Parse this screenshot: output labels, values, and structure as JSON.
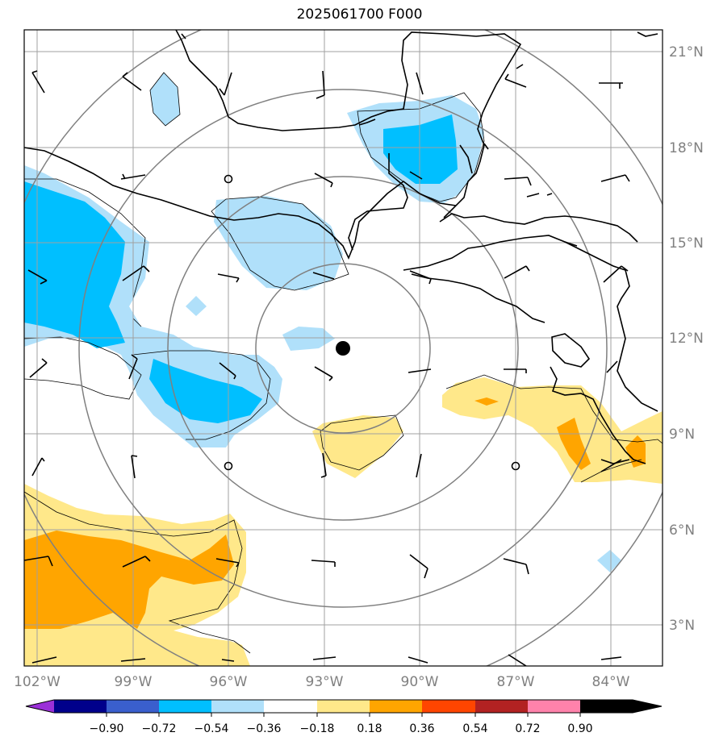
{
  "title": "2025061700 F000",
  "lat_labels": [
    "21°N",
    "18°N",
    "15°N",
    "12°N",
    "9°N",
    "6°N",
    "3°N"
  ],
  "lon_labels": [
    "102°W",
    "99°W",
    "96°W",
    "93°W",
    "90°W",
    "87°W",
    "84°W"
  ],
  "colorbar": {
    "ticks": [
      "−0.90",
      "−0.72",
      "−0.54",
      "−0.36",
      "−0.18",
      "0.18",
      "0.36",
      "0.54",
      "0.72",
      "0.90"
    ],
    "colors": [
      "#9b30d8",
      "#00008b",
      "#3a5fcd",
      "#00bfff",
      "#b0e0fa",
      "#ffffff",
      "#ffe88a",
      "#ffa500",
      "#ff4500",
      "#b22222",
      "#ff82ab"
    ]
  },
  "center_marker": {
    "lon": -92.5,
    "lat": 11.7
  }
}
